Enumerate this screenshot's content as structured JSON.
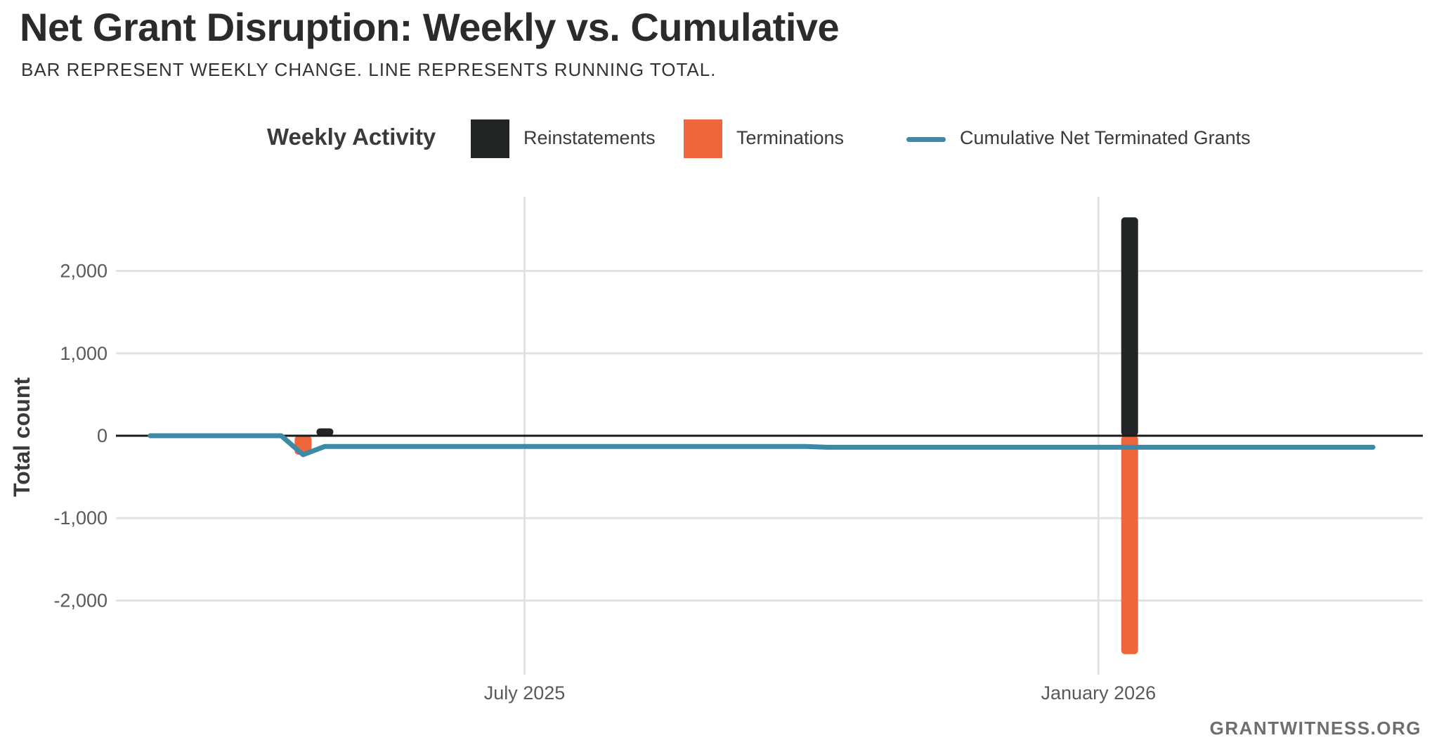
{
  "header": {
    "title": "Net Grant Disruption: Weekly vs. Cumulative",
    "subtitle": "BAR REPRESENT WEEKLY CHANGE. LINE REPRESENTS RUNNING TOTAL."
  },
  "legend": {
    "title": "Weekly Activity",
    "items": [
      {
        "label": "Reinstatements",
        "color": "#222526",
        "kind": "bar"
      },
      {
        "label": "Terminations",
        "color": "#ef663d",
        "kind": "bar"
      },
      {
        "label": "Cumulative Net Terminated Grants",
        "color": "#3d89a8",
        "kind": "line"
      }
    ]
  },
  "footer": "GRANTWITNESS.ORG",
  "chart_data": {
    "type": "bar",
    "ylabel": "Total count",
    "xlabel": "",
    "ylim": [
      -2900,
      2900
    ],
    "xlim": [
      "2025-02-20",
      "2026-04-15"
    ],
    "yticks": [
      {
        "value": 2000,
        "label": "2,000"
      },
      {
        "value": 1000,
        "label": "1,000"
      },
      {
        "value": 0,
        "label": "0"
      },
      {
        "value": -1000,
        "label": "-1,000"
      },
      {
        "value": -2000,
        "label": "-2,000"
      }
    ],
    "xticks": [
      {
        "date": "2025-07-01",
        "label": "July 2025"
      },
      {
        "date": "2026-01-01",
        "label": "January 2026"
      }
    ],
    "grid": true,
    "legend_position": "top",
    "series": [
      {
        "name": "Reinstatements",
        "color": "#222526",
        "points": [
          {
            "x": "2025-04-28",
            "y": 90
          },
          {
            "x": "2026-01-11",
            "y": 2650
          }
        ]
      },
      {
        "name": "Terminations",
        "color": "#ef663d",
        "points": [
          {
            "x": "2025-04-21",
            "y": -230
          },
          {
            "x": "2026-01-11",
            "y": -2650
          }
        ]
      },
      {
        "name": "Cumulative Net Terminated Grants",
        "color": "#3d89a8",
        "kind": "line",
        "points": [
          {
            "x": "2025-03-03",
            "y": 0
          },
          {
            "x": "2025-04-14",
            "y": 0
          },
          {
            "x": "2025-04-21",
            "y": -230
          },
          {
            "x": "2025-04-28",
            "y": -130
          },
          {
            "x": "2025-09-29",
            "y": -130
          },
          {
            "x": "2025-10-06",
            "y": -140
          },
          {
            "x": "2026-03-30",
            "y": -140
          }
        ]
      }
    ]
  }
}
